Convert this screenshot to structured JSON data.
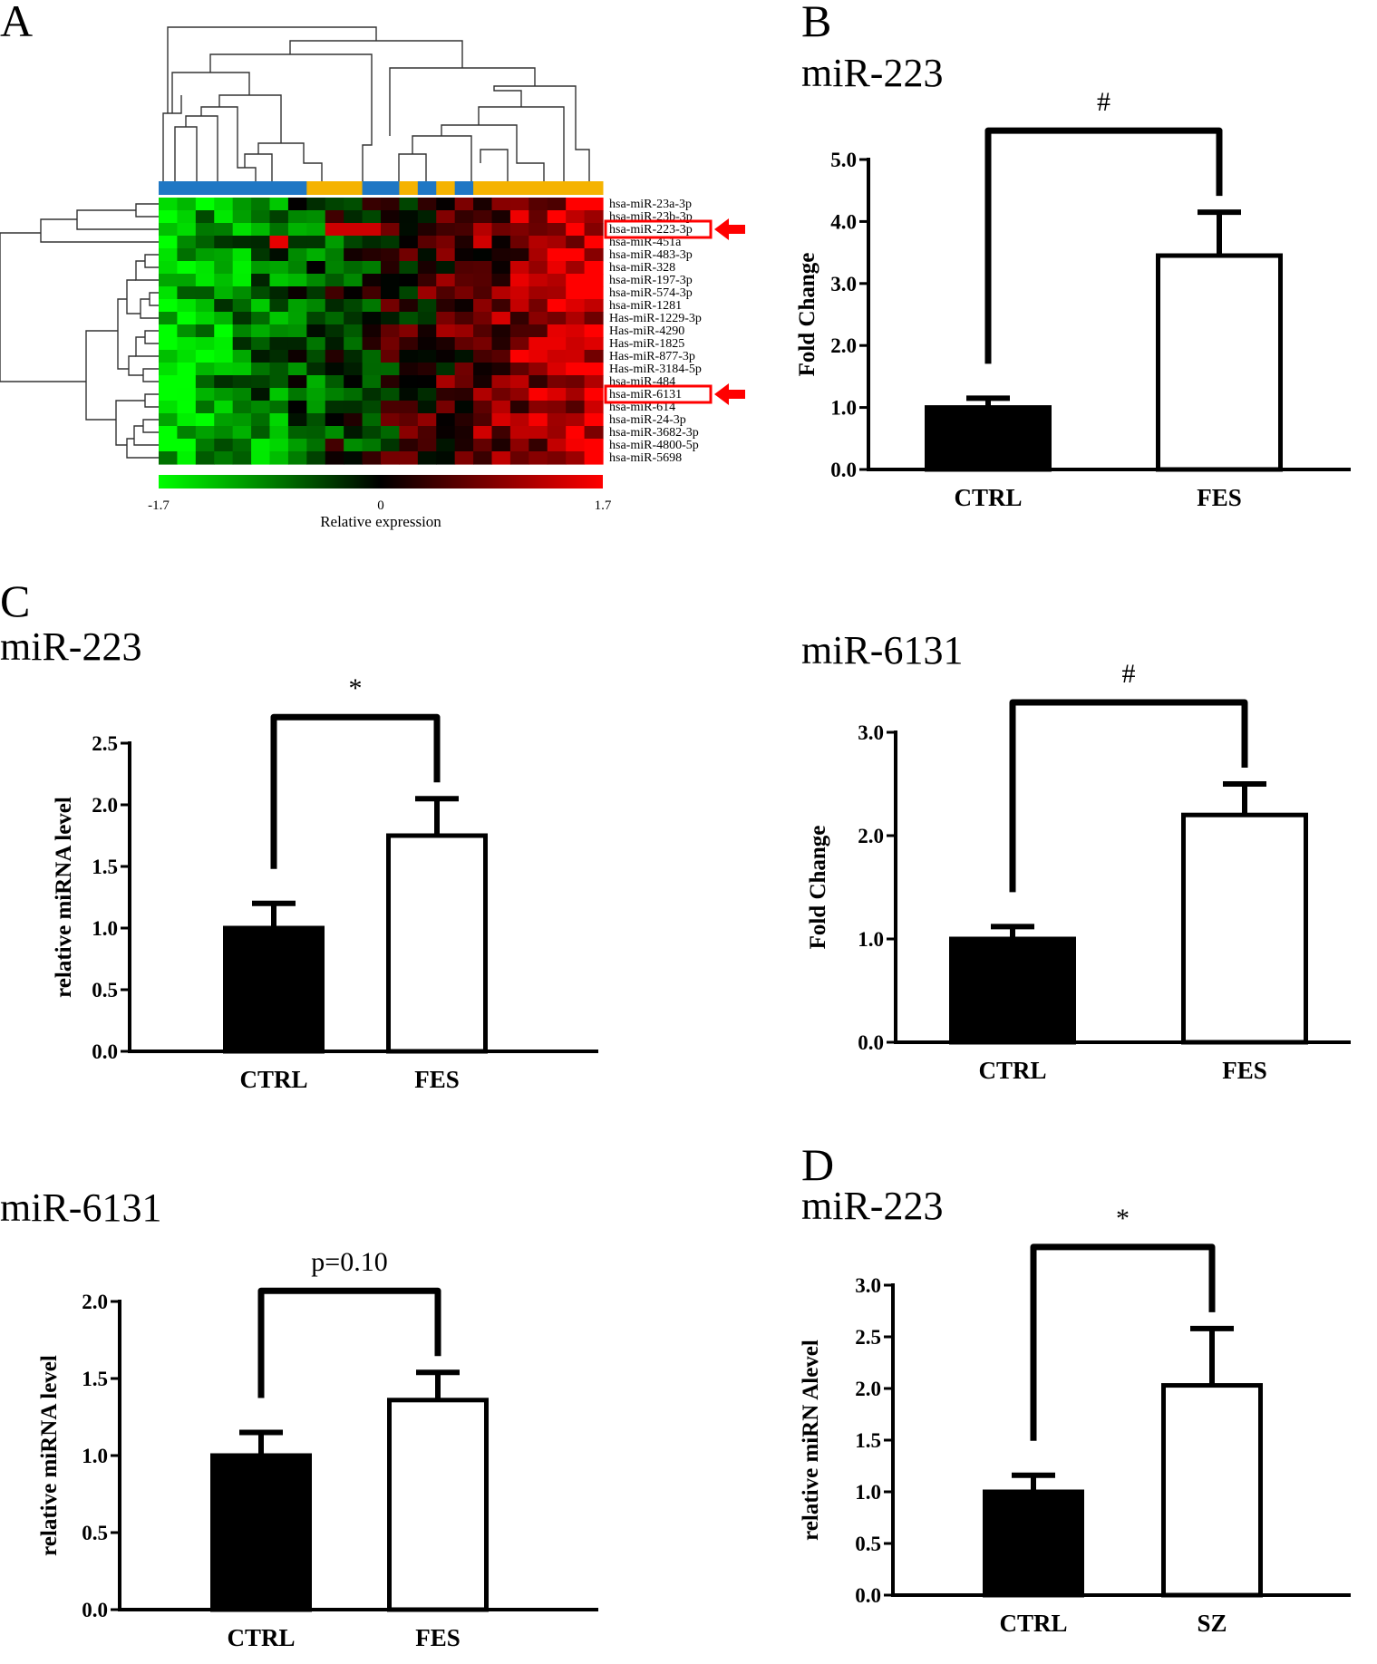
{
  "panels": {
    "A": "A",
    "B": "B",
    "C": "C",
    "D": "D"
  },
  "heatmap": {
    "gene_labels": [
      "hsa-miR-23a-3p",
      "hsa-miR-23b-3p",
      "hsa-miR-223-3p",
      "hsa-miR-451a",
      "hsa-miR-483-3p",
      "hsa-miR-328",
      "hsa-miR-197-3p",
      "hsa-miR-574-3p",
      "hsa-miR-1281",
      "Has-miR-1229-3p",
      "Has-miR-4290",
      "Has-miR-1825",
      "Has-miR-877-3p",
      "Has-miR-3184-5p",
      "hsa-miR-484",
      "hsa-miR-6131",
      "hsa-miR-614",
      "hsa-miR-24-3p",
      "hsa-miR-3682-3p",
      "hsa-miR-4800-5p",
      "hsa-miR-5698"
    ],
    "highlighted": [
      "hsa-miR-223-3p",
      "hsa-miR-6131"
    ],
    "scale_min_label": "-1.7",
    "scale_mid_label": "0",
    "scale_max_label": "1.7",
    "scale_title": "Relative expression",
    "colors": {
      "low": "#00ff00",
      "mid": "#000000",
      "high": "#ff0000",
      "group1": "#1f77c4",
      "group2": "#f5b301",
      "highlight": "#ff0000"
    }
  },
  "chart_data": [
    {
      "id": "B-miR-223",
      "type": "bar",
      "title": "miR-223",
      "categories": [
        "CTRL",
        "FES"
      ],
      "values": [
        1.0,
        3.45
      ],
      "errors": [
        0.15,
        0.7
      ],
      "ylabel": "Fold Change",
      "ylim": [
        0,
        5
      ],
      "yticks": [
        "0.0",
        "1.0",
        "2.0",
        "3.0",
        "4.0",
        "5.0"
      ],
      "significance": "#",
      "fills": [
        "#000000",
        "#ffffff"
      ]
    },
    {
      "id": "C-miR-223",
      "type": "bar",
      "title": "miR-223",
      "categories": [
        "CTRL",
        "FES"
      ],
      "values": [
        1.0,
        1.75
      ],
      "errors": [
        0.2,
        0.3
      ],
      "ylabel": "relative miRNA level",
      "ylim": [
        0,
        2.5
      ],
      "yticks": [
        "0.0",
        "0.5",
        "1.0",
        "1.5",
        "2.0",
        "2.5"
      ],
      "significance": "*",
      "fills": [
        "#000000",
        "#ffffff"
      ]
    },
    {
      "id": "C-miR-6131-fold",
      "type": "bar",
      "title": "miR-6131",
      "categories": [
        "CTRL",
        "FES"
      ],
      "values": [
        1.0,
        2.2
      ],
      "errors": [
        0.12,
        0.3
      ],
      "ylabel": "Fold Change",
      "ylim": [
        0,
        3
      ],
      "yticks": [
        "0.0",
        "1.0",
        "2.0",
        "3.0"
      ],
      "significance": "#",
      "fills": [
        "#000000",
        "#ffffff"
      ]
    },
    {
      "id": "C-miR-6131-rel",
      "type": "bar",
      "title": "miR-6131",
      "categories": [
        "CTRL",
        "FES"
      ],
      "values": [
        1.0,
        1.36
      ],
      "errors": [
        0.15,
        0.18
      ],
      "ylabel": "relative miRNA level",
      "ylim": [
        0,
        2
      ],
      "yticks": [
        "0.0",
        "0.5",
        "1.0",
        "1.5",
        "2.0"
      ],
      "significance": "p=0.10",
      "fills": [
        "#000000",
        "#ffffff"
      ]
    },
    {
      "id": "D-miR-223",
      "type": "bar",
      "title": "miR-223",
      "categories": [
        "CTRL",
        "SZ"
      ],
      "values": [
        1.0,
        2.03
      ],
      "errors": [
        0.16,
        0.55
      ],
      "ylabel": "relative miRN Alevel",
      "ylim": [
        0,
        3
      ],
      "yticks": [
        "0.0",
        "0.5",
        "1.0",
        "1.5",
        "2.0",
        "2.5",
        "3.0"
      ],
      "significance": "*",
      "fills": [
        "#000000",
        "#ffffff"
      ]
    }
  ]
}
